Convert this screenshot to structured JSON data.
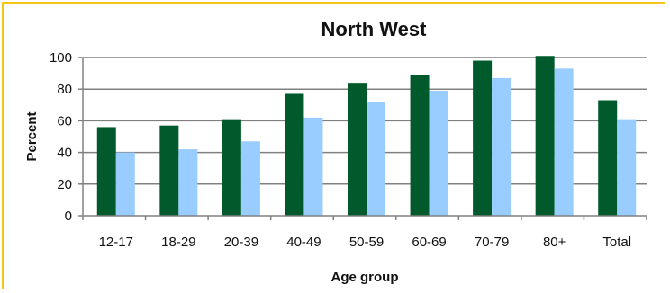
{
  "chart_data": {
    "type": "bar",
    "title": "North West",
    "xlabel": "Age group",
    "ylabel": "Percent",
    "ylim": [
      0,
      100
    ],
    "yticks": [
      0,
      20,
      40,
      60,
      80,
      100
    ],
    "grid": true,
    "categories": [
      "12-17",
      "18-29",
      "20-39",
      "40-49",
      "50-59",
      "60-69",
      "70-79",
      "80+",
      "Total"
    ],
    "series": [
      {
        "color": "#005a2b",
        "values": [
          56,
          57,
          61,
          77,
          84,
          89,
          98,
          101,
          73
        ]
      },
      {
        "color": "#99ccff",
        "values": [
          40,
          42,
          47,
          62,
          72,
          79,
          87,
          93,
          61
        ]
      }
    ]
  }
}
